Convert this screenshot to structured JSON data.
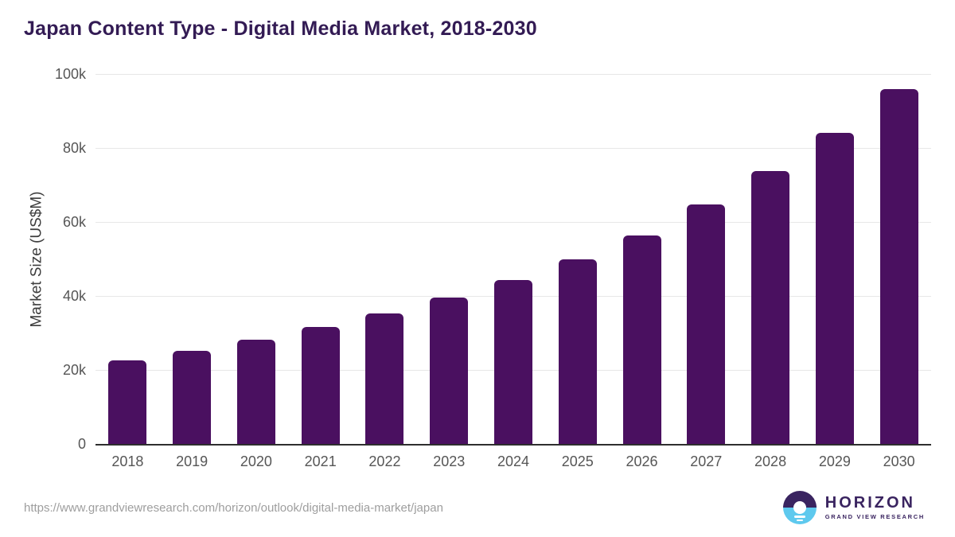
{
  "header": {
    "title": "Japan Content Type - Digital Media Market, 2018-2030"
  },
  "chart_data": {
    "type": "bar",
    "title": "Japan Content Type - Digital Media Market, 2018-2030",
    "xlabel": "",
    "ylabel": "Market Size (US$M)",
    "categories": [
      "2018",
      "2019",
      "2020",
      "2021",
      "2022",
      "2023",
      "2024",
      "2025",
      "2026",
      "2027",
      "2028",
      "2029",
      "2030"
    ],
    "values": [
      22500,
      25100,
      28100,
      31600,
      35200,
      39500,
      44300,
      49900,
      56300,
      64800,
      73700,
      84100,
      96000
    ],
    "ylim": [
      0,
      100000
    ],
    "yticks": {
      "values": [
        0,
        20000,
        40000,
        60000,
        80000,
        100000
      ],
      "labels": [
        "0",
        "20k",
        "40k",
        "60k",
        "80k",
        "100k"
      ]
    },
    "grid": true,
    "legend": "none",
    "bar_color": "#4a1060"
  },
  "footer": {
    "source_url": "https://www.grandviewresearch.com/horizon/outlook/digital-media-market/japan",
    "logo": {
      "name": "HORIZON",
      "subtext": "GRAND VIEW RESEARCH"
    }
  },
  "colors": {
    "bar": "#4a1060",
    "title": "#331b54",
    "tick": "#565656",
    "grid": "#e7e7e7",
    "axis": "#2e2e2e",
    "url": "#9e9e9e",
    "logo_purple": "#3a2460",
    "logo_blue": "#5ec9ee"
  }
}
